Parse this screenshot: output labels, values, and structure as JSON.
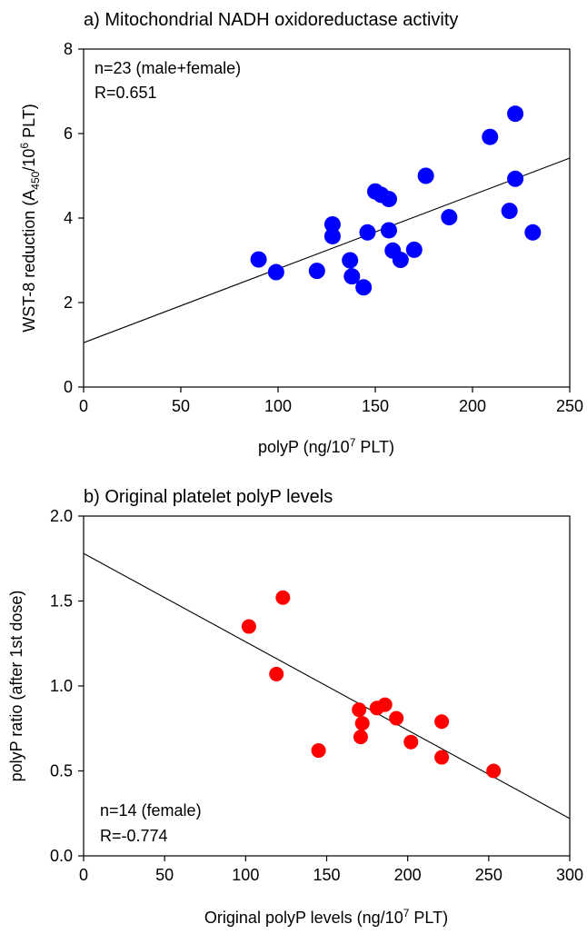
{
  "chart_data": [
    {
      "type": "scatter",
      "title": "a) Mitochondrial NADH oxidoreductase activity",
      "xlabel_parts": [
        "polyP (ng/10",
        "7",
        " PLT)"
      ],
      "ylabel_parts": [
        "WST-8 reduction (A",
        "450",
        "/10",
        "6",
        " PLT)"
      ],
      "xlim": [
        0,
        250
      ],
      "ylim": [
        0,
        8
      ],
      "x_ticks": [
        0,
        50,
        100,
        150,
        200,
        250
      ],
      "y_ticks": [
        0,
        2,
        4,
        6,
        8
      ],
      "x_tick_labels": [
        "0",
        "50",
        "100",
        "150",
        "200",
        "250"
      ],
      "y_tick_labels": [
        "0",
        "2",
        "4",
        "6",
        "8"
      ],
      "annotations": [
        "n=23 (male+female)",
        "R=0.651"
      ],
      "point_color": "#0000ff",
      "fit_line": [
        [
          0,
          1.05
        ],
        [
          250,
          5.42
        ]
      ],
      "points": [
        [
          90,
          3.02
        ],
        [
          99,
          2.72
        ],
        [
          120,
          2.75
        ],
        [
          128,
          3.85
        ],
        [
          128,
          3.57
        ],
        [
          137,
          3.0
        ],
        [
          138,
          2.62
        ],
        [
          144,
          2.36
        ],
        [
          146,
          3.66
        ],
        [
          150,
          4.63
        ],
        [
          153,
          4.55
        ],
        [
          157,
          4.45
        ],
        [
          157,
          3.71
        ],
        [
          159,
          3.23
        ],
        [
          163,
          3.01
        ],
        [
          170,
          3.25
        ],
        [
          176,
          5.0
        ],
        [
          188,
          4.02
        ],
        [
          209,
          5.92
        ],
        [
          219,
          4.17
        ],
        [
          222,
          4.93
        ],
        [
          222,
          6.47
        ],
        [
          231,
          3.66
        ]
      ]
    },
    {
      "type": "scatter",
      "title": "b) Original platelet polyP levels",
      "xlabel_parts": [
        "Original polyP levels (ng/10",
        "7",
        " PLT)"
      ],
      "ylabel_parts": [
        "polyP ratio (after 1st dose)"
      ],
      "xlim": [
        0,
        300
      ],
      "ylim": [
        0,
        2.0
      ],
      "x_ticks": [
        0,
        50,
        100,
        150,
        200,
        250,
        300
      ],
      "y_ticks": [
        0,
        0.5,
        1.0,
        1.5,
        2.0
      ],
      "x_tick_labels": [
        "0",
        "50",
        "100",
        "150",
        "200",
        "250",
        "300"
      ],
      "y_tick_labels": [
        "0.0",
        "0.5",
        "1.0",
        "1.5",
        "2.0"
      ],
      "annotations": [
        "n=14 (female)",
        "R=-0.774"
      ],
      "point_color": "#ff0000",
      "fit_line": [
        [
          0,
          1.78
        ],
        [
          300,
          0.22
        ]
      ],
      "points": [
        [
          102,
          1.35
        ],
        [
          119,
          1.07
        ],
        [
          123,
          1.52
        ],
        [
          145,
          0.62
        ],
        [
          170,
          0.86
        ],
        [
          171,
          0.7
        ],
        [
          172,
          0.78
        ],
        [
          181,
          0.87
        ],
        [
          186,
          0.89
        ],
        [
          193,
          0.81
        ],
        [
          202,
          0.67
        ],
        [
          221,
          0.79
        ],
        [
          221,
          0.58
        ],
        [
          253,
          0.5
        ]
      ]
    }
  ]
}
